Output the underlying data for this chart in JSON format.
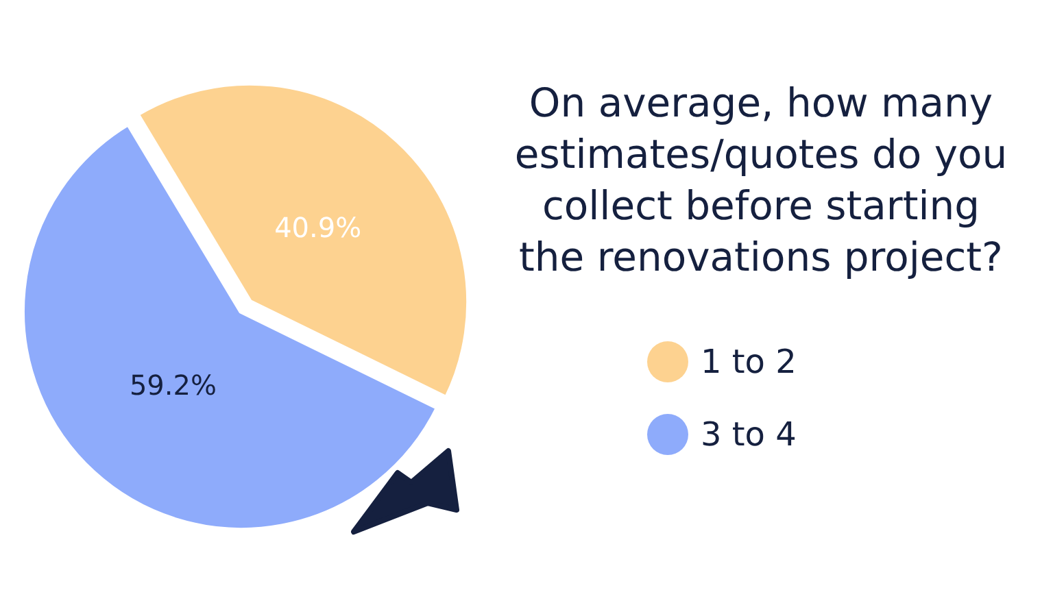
{
  "chart_data": {
    "type": "pie",
    "title": "On average, how many estimates/quotes do you collect before starting the renovations project?",
    "categories": [
      "1 to 2",
      "3 to 4"
    ],
    "values": [
      40.9,
      59.2
    ],
    "colors": [
      "#fdd290",
      "#8eabfb"
    ],
    "data_labels": true,
    "value_labels": [
      "40.9%",
      "59.2%"
    ],
    "legend": "right"
  }
}
